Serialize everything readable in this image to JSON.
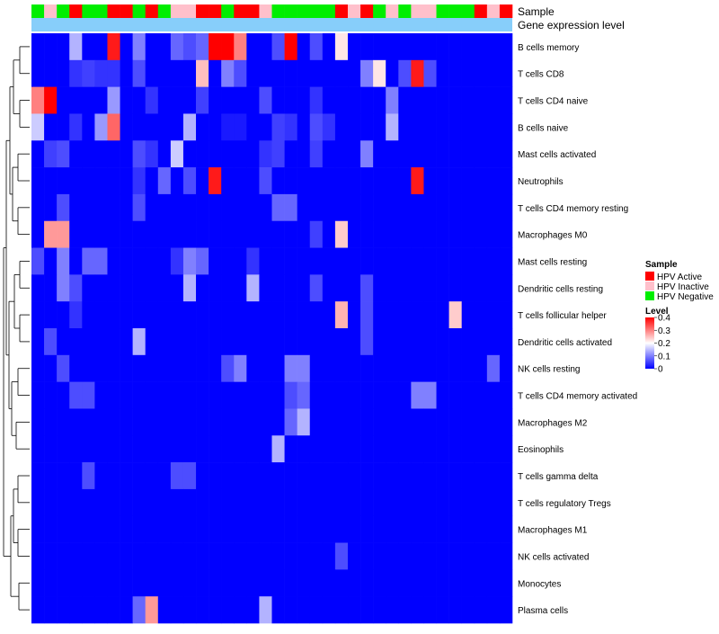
{
  "chart_data": {
    "type": "heatmap",
    "title": "",
    "annotation_labels": {
      "sample": "Sample",
      "expression": "Gene expression level"
    },
    "rows": [
      "B cells memory",
      "T cells CD8",
      "T cells CD4 naive",
      "B cells naive",
      "Mast cells activated",
      "Neutrophils",
      "T cells CD4 memory resting",
      "Macrophages M0",
      "Mast cells resting",
      "Dendritic cells resting",
      "T cells follicular helper",
      "Dendritic cells activated",
      "NK cells resting",
      "T cells CD4 memory activated",
      "Macrophages M2",
      "Eosinophils",
      "T cells gamma delta",
      "T cells regulatory  Tregs",
      "Macrophages M1",
      "NK cells activated",
      "Monocytes",
      "Plasma cells"
    ],
    "sample_groups": [
      "N",
      "I",
      "N",
      "A",
      "N",
      "N",
      "A",
      "A",
      "N",
      "A",
      "N",
      "I",
      "I",
      "A",
      "A",
      "N",
      "A",
      "A",
      "I",
      "N",
      "N",
      "N",
      "N",
      "N",
      "A",
      "I",
      "A",
      "N",
      "I",
      "N",
      "I",
      "I",
      "N",
      "N",
      "N",
      "A",
      "I",
      "A"
    ],
    "values": [
      [
        0.0,
        0.0,
        0.0,
        0.14,
        0.0,
        0.0,
        0.38,
        0.0,
        0.1,
        0.0,
        0.0,
        0.08,
        0.06,
        0.08,
        0.4,
        0.4,
        0.3,
        0.0,
        0.0,
        0.06,
        0.4,
        0.0,
        0.06,
        0.0,
        0.22,
        0.0,
        0.0,
        0.0,
        0.0,
        0.0,
        0.0,
        0.0,
        0.0,
        0.0,
        0.0,
        0.0,
        0.0,
        0.0
      ],
      [
        0.0,
        0.0,
        0.0,
        0.04,
        0.05,
        0.04,
        0.04,
        0.0,
        0.06,
        0.0,
        0.0,
        0.0,
        0.0,
        0.25,
        0.0,
        0.1,
        0.06,
        0.0,
        0.0,
        0.0,
        0.0,
        0.0,
        0.0,
        0.0,
        0.0,
        0.0,
        0.1,
        0.22,
        0.0,
        0.06,
        0.38,
        0.06,
        0.0,
        0.0,
        0.0,
        0.0,
        0.0,
        0.0
      ],
      [
        0.3,
        0.4,
        0.0,
        0.0,
        0.0,
        0.0,
        0.12,
        0.0,
        0.0,
        0.04,
        0.0,
        0.0,
        0.0,
        0.05,
        0.0,
        0.0,
        0.0,
        0.0,
        0.06,
        0.0,
        0.0,
        0.0,
        0.04,
        0.0,
        0.0,
        0.0,
        0.0,
        0.0,
        0.1,
        0.0,
        0.0,
        0.0,
        0.0,
        0.0,
        0.0,
        0.0,
        0.0,
        0.0
      ],
      [
        0.16,
        0.0,
        0.0,
        0.04,
        0.0,
        0.12,
        0.32,
        0.0,
        0.0,
        0.0,
        0.0,
        0.0,
        0.14,
        0.0,
        0.0,
        0.02,
        0.02,
        0.0,
        0.0,
        0.05,
        0.04,
        0.0,
        0.06,
        0.04,
        0.0,
        0.0,
        0.0,
        0.0,
        0.14,
        0.0,
        0.0,
        0.0,
        0.0,
        0.0,
        0.0,
        0.0,
        0.0,
        0.0
      ],
      [
        0.0,
        0.05,
        0.06,
        0.0,
        0.0,
        0.0,
        0.0,
        0.0,
        0.06,
        0.04,
        0.0,
        0.16,
        0.0,
        0.0,
        0.0,
        0.0,
        0.0,
        0.0,
        0.04,
        0.05,
        0.0,
        0.0,
        0.05,
        0.0,
        0.0,
        0.0,
        0.1,
        0.0,
        0.0,
        0.0,
        0.0,
        0.0,
        0.0,
        0.0,
        0.0,
        0.0,
        0.0,
        0.0
      ],
      [
        0.0,
        0.0,
        0.0,
        0.0,
        0.0,
        0.0,
        0.0,
        0.0,
        0.04,
        0.0,
        0.08,
        0.0,
        0.06,
        0.0,
        0.38,
        0.0,
        0.0,
        0.0,
        0.06,
        0.0,
        0.0,
        0.0,
        0.0,
        0.0,
        0.0,
        0.0,
        0.0,
        0.0,
        0.0,
        0.0,
        0.38,
        0.0,
        0.0,
        0.0,
        0.0,
        0.0,
        0.0,
        0.0
      ],
      [
        0.0,
        0.0,
        0.06,
        0.0,
        0.0,
        0.0,
        0.0,
        0.0,
        0.06,
        0.0,
        0.0,
        0.0,
        0.0,
        0.0,
        0.0,
        0.0,
        0.0,
        0.0,
        0.0,
        0.08,
        0.08,
        0.0,
        0.0,
        0.0,
        0.0,
        0.0,
        0.0,
        0.0,
        0.0,
        0.0,
        0.0,
        0.0,
        0.0,
        0.0,
        0.0,
        0.0,
        0.0,
        0.0
      ],
      [
        0.0,
        0.28,
        0.28,
        0.0,
        0.0,
        0.0,
        0.0,
        0.0,
        0.0,
        0.0,
        0.0,
        0.0,
        0.0,
        0.0,
        0.0,
        0.0,
        0.0,
        0.0,
        0.0,
        0.0,
        0.0,
        0.0,
        0.05,
        0.0,
        0.24,
        0.0,
        0.0,
        0.0,
        0.0,
        0.0,
        0.0,
        0.0,
        0.0,
        0.0,
        0.0,
        0.0,
        0.0,
        0.0
      ],
      [
        0.06,
        0.0,
        0.1,
        0.0,
        0.08,
        0.08,
        0.0,
        0.0,
        0.0,
        0.0,
        0.0,
        0.04,
        0.1,
        0.08,
        0.0,
        0.0,
        0.0,
        0.04,
        0.0,
        0.0,
        0.0,
        0.0,
        0.0,
        0.0,
        0.0,
        0.0,
        0.0,
        0.0,
        0.0,
        0.0,
        0.0,
        0.0,
        0.0,
        0.0,
        0.0,
        0.0,
        0.0,
        0.0
      ],
      [
        0.0,
        0.0,
        0.1,
        0.06,
        0.0,
        0.0,
        0.0,
        0.0,
        0.0,
        0.0,
        0.0,
        0.0,
        0.14,
        0.0,
        0.0,
        0.0,
        0.0,
        0.14,
        0.0,
        0.0,
        0.0,
        0.0,
        0.06,
        0.0,
        0.0,
        0.0,
        0.06,
        0.0,
        0.0,
        0.0,
        0.0,
        0.0,
        0.0,
        0.0,
        0.0,
        0.0,
        0.0,
        0.0
      ],
      [
        0.0,
        0.0,
        0.0,
        0.04,
        0.0,
        0.0,
        0.0,
        0.0,
        0.0,
        0.0,
        0.0,
        0.0,
        0.0,
        0.0,
        0.0,
        0.0,
        0.0,
        0.0,
        0.0,
        0.0,
        0.0,
        0.0,
        0.0,
        0.0,
        0.26,
        0.0,
        0.06,
        0.0,
        0.0,
        0.0,
        0.0,
        0.0,
        0.0,
        0.24,
        0.0,
        0.0,
        0.0,
        0.0
      ],
      [
        0.0,
        0.06,
        0.0,
        0.0,
        0.0,
        0.0,
        0.0,
        0.0,
        0.14,
        0.0,
        0.0,
        0.0,
        0.0,
        0.0,
        0.0,
        0.0,
        0.0,
        0.0,
        0.0,
        0.0,
        0.0,
        0.0,
        0.0,
        0.0,
        0.0,
        0.0,
        0.06,
        0.0,
        0.0,
        0.0,
        0.0,
        0.0,
        0.0,
        0.0,
        0.0,
        0.0,
        0.0,
        0.0
      ],
      [
        0.0,
        0.0,
        0.06,
        0.0,
        0.0,
        0.0,
        0.0,
        0.0,
        0.0,
        0.0,
        0.0,
        0.0,
        0.0,
        0.0,
        0.0,
        0.06,
        0.1,
        0.0,
        0.0,
        0.0,
        0.1,
        0.1,
        0.0,
        0.0,
        0.0,
        0.0,
        0.0,
        0.0,
        0.0,
        0.0,
        0.0,
        0.0,
        0.0,
        0.0,
        0.0,
        0.0,
        0.08,
        0.0
      ],
      [
        0.0,
        0.0,
        0.0,
        0.06,
        0.06,
        0.0,
        0.0,
        0.0,
        0.0,
        0.0,
        0.0,
        0.0,
        0.0,
        0.0,
        0.0,
        0.0,
        0.0,
        0.0,
        0.0,
        0.0,
        0.06,
        0.08,
        0.0,
        0.0,
        0.0,
        0.0,
        0.0,
        0.0,
        0.0,
        0.0,
        0.1,
        0.1,
        0.0,
        0.0,
        0.0,
        0.0,
        0.0,
        0.0
      ],
      [
        0.0,
        0.0,
        0.0,
        0.0,
        0.0,
        0.0,
        0.0,
        0.0,
        0.0,
        0.0,
        0.0,
        0.0,
        0.0,
        0.0,
        0.0,
        0.0,
        0.0,
        0.0,
        0.0,
        0.0,
        0.08,
        0.14,
        0.0,
        0.0,
        0.0,
        0.0,
        0.0,
        0.0,
        0.0,
        0.0,
        0.0,
        0.0,
        0.0,
        0.0,
        0.0,
        0.0,
        0.0,
        0.0
      ],
      [
        0.0,
        0.0,
        0.0,
        0.0,
        0.0,
        0.0,
        0.0,
        0.0,
        0.0,
        0.0,
        0.0,
        0.0,
        0.0,
        0.0,
        0.0,
        0.0,
        0.0,
        0.0,
        0.0,
        0.14,
        0.0,
        0.0,
        0.0,
        0.0,
        0.0,
        0.0,
        0.0,
        0.0,
        0.0,
        0.0,
        0.0,
        0.0,
        0.0,
        0.0,
        0.0,
        0.0,
        0.0,
        0.0
      ],
      [
        0.0,
        0.0,
        0.0,
        0.0,
        0.06,
        0.0,
        0.0,
        0.0,
        0.0,
        0.0,
        0.0,
        0.06,
        0.06,
        0.0,
        0.0,
        0.0,
        0.0,
        0.0,
        0.0,
        0.0,
        0.0,
        0.0,
        0.0,
        0.0,
        0.0,
        0.0,
        0.0,
        0.0,
        0.0,
        0.0,
        0.0,
        0.0,
        0.0,
        0.0,
        0.0,
        0.0,
        0.0,
        0.0
      ],
      [
        0.0,
        0.0,
        0.0,
        0.0,
        0.0,
        0.0,
        0.0,
        0.0,
        0.0,
        0.0,
        0.0,
        0.0,
        0.0,
        0.0,
        0.0,
        0.0,
        0.0,
        0.0,
        0.0,
        0.0,
        0.0,
        0.0,
        0.0,
        0.0,
        0.0,
        0.0,
        0.0,
        0.0,
        0.0,
        0.0,
        0.0,
        0.0,
        0.0,
        0.0,
        0.0,
        0.0,
        0.0,
        0.0
      ],
      [
        0.0,
        0.0,
        0.0,
        0.0,
        0.0,
        0.0,
        0.0,
        0.0,
        0.0,
        0.0,
        0.0,
        0.0,
        0.0,
        0.0,
        0.0,
        0.0,
        0.0,
        0.0,
        0.0,
        0.0,
        0.0,
        0.0,
        0.0,
        0.0,
        0.0,
        0.0,
        0.0,
        0.0,
        0.0,
        0.0,
        0.0,
        0.0,
        0.0,
        0.0,
        0.0,
        0.0,
        0.0,
        0.0
      ],
      [
        0.0,
        0.0,
        0.0,
        0.0,
        0.0,
        0.0,
        0.0,
        0.0,
        0.0,
        0.0,
        0.0,
        0.0,
        0.0,
        0.0,
        0.0,
        0.0,
        0.0,
        0.0,
        0.0,
        0.0,
        0.0,
        0.0,
        0.0,
        0.0,
        0.06,
        0.0,
        0.0,
        0.0,
        0.0,
        0.0,
        0.0,
        0.0,
        0.0,
        0.0,
        0.0,
        0.0,
        0.0,
        0.0
      ],
      [
        0.0,
        0.0,
        0.0,
        0.0,
        0.0,
        0.0,
        0.0,
        0.0,
        0.0,
        0.0,
        0.0,
        0.0,
        0.0,
        0.0,
        0.0,
        0.0,
        0.0,
        0.0,
        0.0,
        0.0,
        0.0,
        0.0,
        0.0,
        0.0,
        0.0,
        0.0,
        0.0,
        0.0,
        0.0,
        0.0,
        0.0,
        0.0,
        0.0,
        0.0,
        0.0,
        0.0,
        0.0,
        0.0
      ],
      [
        0.0,
        0.0,
        0.0,
        0.0,
        0.0,
        0.0,
        0.0,
        0.0,
        0.08,
        0.28,
        0.0,
        0.0,
        0.0,
        0.0,
        0.0,
        0.0,
        0.0,
        0.0,
        0.14,
        0.0,
        0.0,
        0.0,
        0.0,
        0.0,
        0.0,
        0.0,
        0.0,
        0.0,
        0.0,
        0.0,
        0.0,
        0.0,
        0.0,
        0.0,
        0.0,
        0.0,
        0.0,
        0.0
      ]
    ],
    "color_scale": {
      "low": "#0000ff",
      "mid": "#ffffff",
      "high": "#ff0000",
      "range": [
        0,
        0.4
      ],
      "mid_value": 0.2
    },
    "legend": {
      "placement": "right",
      "sample": {
        "title": "Sample",
        "items": [
          {
            "key": "A",
            "label": "HPV Active",
            "color": "#ff0000"
          },
          {
            "key": "I",
            "label": "HPV Inactive",
            "color": "#ffc0cb"
          },
          {
            "key": "N",
            "label": "HPV Negative",
            "color": "#00ee00"
          }
        ]
      },
      "level": {
        "title": "Level",
        "ticks": [
          "0.4",
          "0.3",
          "0.2",
          "0.1",
          "0"
        ],
        "tick_values": [
          0.4,
          0.3,
          0.2,
          0.1,
          0
        ]
      }
    },
    "expression_bar_color": "#87cefa",
    "dendrogram": "left"
  }
}
